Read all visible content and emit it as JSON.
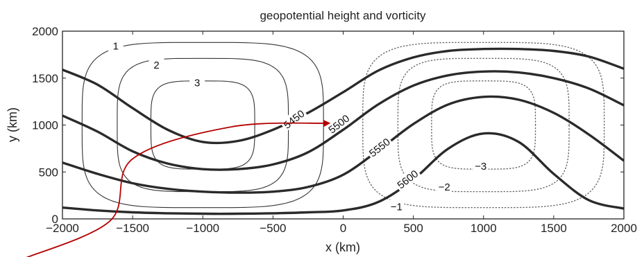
{
  "chart_data": {
    "type": "contour",
    "title": "geopotential height and vorticity",
    "xlabel": "x  (km)",
    "ylabel": "y  (km)",
    "xlim": [
      -2000,
      2000
    ],
    "ylim": [
      0,
      2000
    ],
    "xticks": [
      "-2000",
      "-1500",
      "-1000",
      "-500",
      "0",
      "500",
      "1000",
      "1500",
      "2000"
    ],
    "yticks": [
      "0",
      "500",
      "1000",
      "1500",
      "2000"
    ],
    "grid": false,
    "height_contours": [
      {
        "label": "5450",
        "points": [
          [
            -2000,
            1590
          ],
          [
            -1750,
            1430
          ],
          [
            -1500,
            1180
          ],
          [
            -1250,
            950
          ],
          [
            -1000,
            820
          ],
          [
            -750,
            830
          ],
          [
            -500,
            950
          ],
          [
            -250,
            1130
          ],
          [
            0,
            1350
          ],
          [
            250,
            1580
          ],
          [
            500,
            1720
          ],
          [
            750,
            1790
          ],
          [
            1000,
            1810
          ],
          [
            1250,
            1810
          ],
          [
            1500,
            1790
          ],
          [
            1750,
            1730
          ],
          [
            2000,
            1600
          ]
        ],
        "label_at": [
          -350,
          1060
        ]
      },
      {
        "label": "5500",
        "points": [
          [
            -2000,
            1100
          ],
          [
            -1750,
            930
          ],
          [
            -1500,
            720
          ],
          [
            -1250,
            590
          ],
          [
            -1000,
            530
          ],
          [
            -750,
            530
          ],
          [
            -500,
            580
          ],
          [
            -250,
            710
          ],
          [
            0,
            950
          ],
          [
            250,
            1220
          ],
          [
            500,
            1420
          ],
          [
            750,
            1530
          ],
          [
            1000,
            1570
          ],
          [
            1250,
            1560
          ],
          [
            1500,
            1500
          ],
          [
            1750,
            1390
          ],
          [
            2000,
            1210
          ]
        ],
        "label_at": [
          -30,
          1010
        ]
      },
      {
        "label": "5550",
        "points": [
          [
            -2000,
            600
          ],
          [
            -1750,
            480
          ],
          [
            -1500,
            380
          ],
          [
            -1250,
            320
          ],
          [
            -1000,
            290
          ],
          [
            -750,
            280
          ],
          [
            -500,
            290
          ],
          [
            -250,
            340
          ],
          [
            0,
            470
          ],
          [
            250,
            730
          ],
          [
            500,
            1010
          ],
          [
            750,
            1220
          ],
          [
            1000,
            1300
          ],
          [
            1250,
            1270
          ],
          [
            1500,
            1130
          ],
          [
            1750,
            900
          ],
          [
            2000,
            620
          ]
        ],
        "label_at": [
          260,
          760
        ]
      },
      {
        "label": "5600",
        "points": [
          [
            -2000,
            120
          ],
          [
            -1750,
            90
          ],
          [
            -1500,
            70
          ],
          [
            -1250,
            60
          ],
          [
            -1000,
            55
          ],
          [
            -750,
            55
          ],
          [
            -500,
            60
          ],
          [
            -250,
            70
          ],
          [
            0,
            90
          ],
          [
            250,
            180
          ],
          [
            500,
            420
          ],
          [
            750,
            750
          ],
          [
            1000,
            910
          ],
          [
            1250,
            820
          ],
          [
            1500,
            480
          ],
          [
            1750,
            200
          ],
          [
            2000,
            110
          ]
        ],
        "label_at": [
          460,
          420
        ]
      }
    ],
    "vorticity_contours": [
      {
        "label": "1",
        "center": [
          -1000,
          1000
        ],
        "half_w": 860,
        "half_h": 880,
        "label_at": [
          -1620,
          1840
        ],
        "style": "solid"
      },
      {
        "label": "2",
        "center": [
          -1000,
          1000
        ],
        "half_w": 610,
        "half_h": 710,
        "label_at": [
          -1330,
          1640
        ],
        "style": "solid"
      },
      {
        "label": "3",
        "center": [
          -1000,
          1000
        ],
        "half_w": 370,
        "half_h": 470,
        "label_at": [
          -1040,
          1450
        ],
        "style": "solid"
      },
      {
        "label": "−1",
        "center": [
          1000,
          1000
        ],
        "half_w": 860,
        "half_h": 880,
        "label_at": [
          380,
          130
        ],
        "style": "dotted"
      },
      {
        "label": "−2",
        "center": [
          1000,
          1000
        ],
        "half_w": 610,
        "half_h": 710,
        "label_at": [
          720,
          340
        ],
        "style": "dotted"
      },
      {
        "label": "−3",
        "center": [
          1000,
          1000
        ],
        "half_w": 370,
        "half_h": 470,
        "label_at": [
          980,
          560
        ],
        "style": "dotted"
      }
    ],
    "annotation_arrow": {
      "color": "#b30000",
      "points": [
        [
          -2270,
          -420
        ],
        [
          -1660,
          -20
        ],
        [
          -1500,
          640
        ],
        [
          -800,
          980
        ],
        [
          -100,
          1020
        ]
      ]
    }
  }
}
